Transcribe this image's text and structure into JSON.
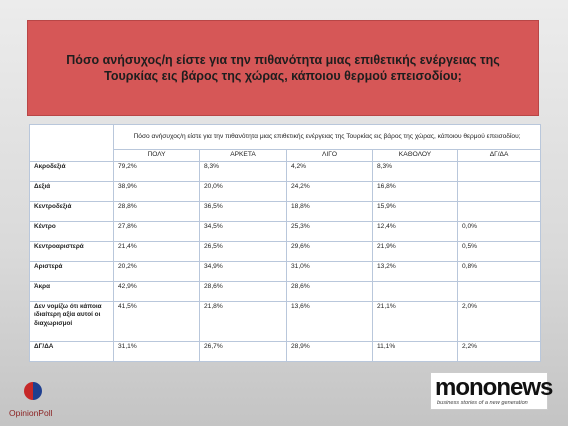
{
  "title": "Πόσο ανήσυχος/η είστε για την πιθανότητα μιας επιθετικής ενέργειας της Τουρκίας εις βάρος της χώρας, κάποιου θερμού επεισοδίου;",
  "table": {
    "question": "Πόσο ανήσυχος/η είστε για την πιθανότητα μιας επιθετικής ενέργειας της Τουρκίας εις βάρος της χώρας, κάποιου θερμού επεισοδίου;",
    "columns": [
      "ΠΟΛΥ",
      "ΑΡΚΕΤΑ",
      "ΛΙΓΟ",
      "ΚΑΘΟΛΟΥ",
      "ΔΓ/ΔΑ"
    ],
    "rows": [
      {
        "label": "Ακροδεξιά",
        "cells": [
          "79,2%",
          "8,3%",
          "4,2%",
          "8,3%",
          null
        ]
      },
      {
        "label": "Δεξιά",
        "cells": [
          "38,9%",
          "20,0%",
          "24,2%",
          "16,8%",
          null
        ]
      },
      {
        "label": "Κεντροδεξιά",
        "cells": [
          "28,8%",
          "36,5%",
          "18,8%",
          "15,9%",
          null
        ]
      },
      {
        "label": "Κέντρο",
        "cells": [
          "27,8%",
          "34,5%",
          "25,3%",
          "12,4%",
          "0,0%"
        ]
      },
      {
        "label": "Κεντροαριστερά",
        "cells": [
          "21,4%",
          "26,5%",
          "29,6%",
          "21,9%",
          "0,5%"
        ]
      },
      {
        "label": "Αριστερά",
        "cells": [
          "20,2%",
          "34,9%",
          "31,0%",
          "13,2%",
          "0,8%"
        ]
      },
      {
        "label": "Άκρα",
        "cells": [
          "42,9%",
          "28,6%",
          "28,6%",
          null,
          null
        ]
      },
      {
        "label": "Δεν νομίζω ότι κάποια ιδιαίτερη αξία αυτοί οι διαχωρισμοί",
        "cells": [
          "41,5%",
          "21,8%",
          "13,6%",
          "21,1%",
          "2,0%"
        ]
      },
      {
        "label": "ΔΓ/ΔΑ",
        "cells": [
          "31,1%",
          "26,7%",
          "28,9%",
          "11,1%",
          "2,2%"
        ]
      }
    ]
  },
  "logos": {
    "opinionpoll": "OpinionPoll",
    "mononews": "mononews",
    "tagline": "business stories of a new generation"
  }
}
